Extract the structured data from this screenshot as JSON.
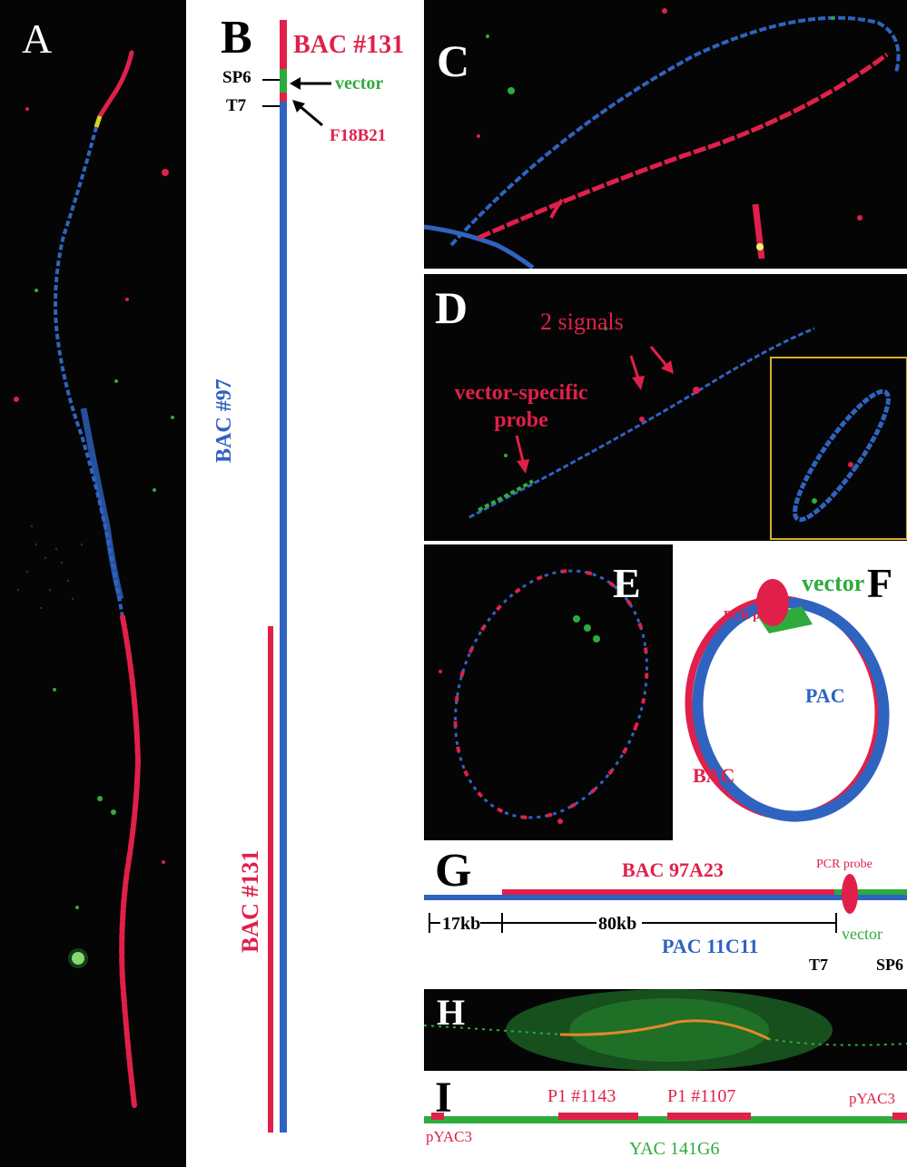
{
  "colors": {
    "red": "#e0204a",
    "blue": "#2f63c0",
    "green": "#2eab3c",
    "black": "#000000",
    "bg_dark": "#050505"
  },
  "panels": {
    "A": {
      "label": "A"
    },
    "B": {
      "label": "B",
      "bac131_top": "BAC #131",
      "sp6": "SP6",
      "vector": "vector",
      "t7": "T7",
      "f18b21": "F18B21",
      "bac97": "BAC #97",
      "bac131_bottom": "BAC #131"
    },
    "C": {
      "label": "C"
    },
    "D": {
      "label": "D",
      "two_signals": "2 signals",
      "vector_probe": "vector-specific probe"
    },
    "E": {
      "label": "E"
    },
    "F": {
      "label": "F",
      "vector": "vector",
      "pcr_probe": "PCR probe",
      "pac": "PAC",
      "bac": "BAC"
    },
    "G": {
      "label": "G",
      "bac": "BAC 97A23",
      "pcr_probe": "PCR probe",
      "kb17": "17kb",
      "kb80": "80kb",
      "vector": "vector",
      "pac": "PAC 11C11",
      "t7": "T7",
      "sp6": "SP6"
    },
    "H": {
      "label": "H"
    },
    "I": {
      "label": "I",
      "p1_1143": "P1 #1143",
      "p1_1107": "P1 #1107",
      "pyac3_right": "pYAC3",
      "pyac3_left": "pYAC3",
      "yac": "YAC 141G6"
    }
  }
}
